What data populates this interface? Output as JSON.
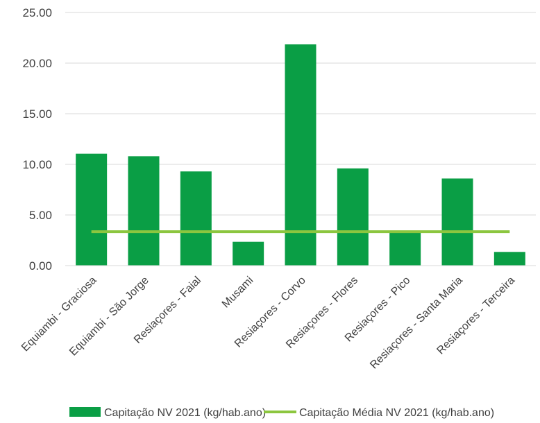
{
  "chart_data": {
    "type": "bar",
    "categories": [
      "Equiambi - Graciosa",
      "Equiambi - São Jorge",
      "Resiaçores - Faial",
      "Musami",
      "Resiaçores - Corvo",
      "Resiaçores - Flores",
      "Resiaçores - Pico",
      "Resiaçores - Santa Maria",
      "Resiaçores - Terceira"
    ],
    "series": [
      {
        "name": "Capitação NV 2021 (kg/hab.ano)",
        "type": "bar",
        "color": "#0a9e45",
        "values": [
          11.05,
          10.8,
          9.3,
          2.35,
          21.85,
          9.6,
          3.3,
          8.6,
          1.35
        ]
      },
      {
        "name": "Capitação Média NV 2021 (kg/hab.ano)",
        "type": "line",
        "color": "#8cc63f",
        "values": [
          3.35,
          3.35,
          3.35,
          3.35,
          3.35,
          3.35,
          3.35,
          3.35,
          3.35
        ]
      }
    ],
    "y_ticks": [
      "0.00",
      "5.00",
      "10.00",
      "15.00",
      "20.00",
      "25.00"
    ],
    "ylim": [
      0,
      25
    ],
    "grid": true,
    "legend_position": "bottom"
  }
}
